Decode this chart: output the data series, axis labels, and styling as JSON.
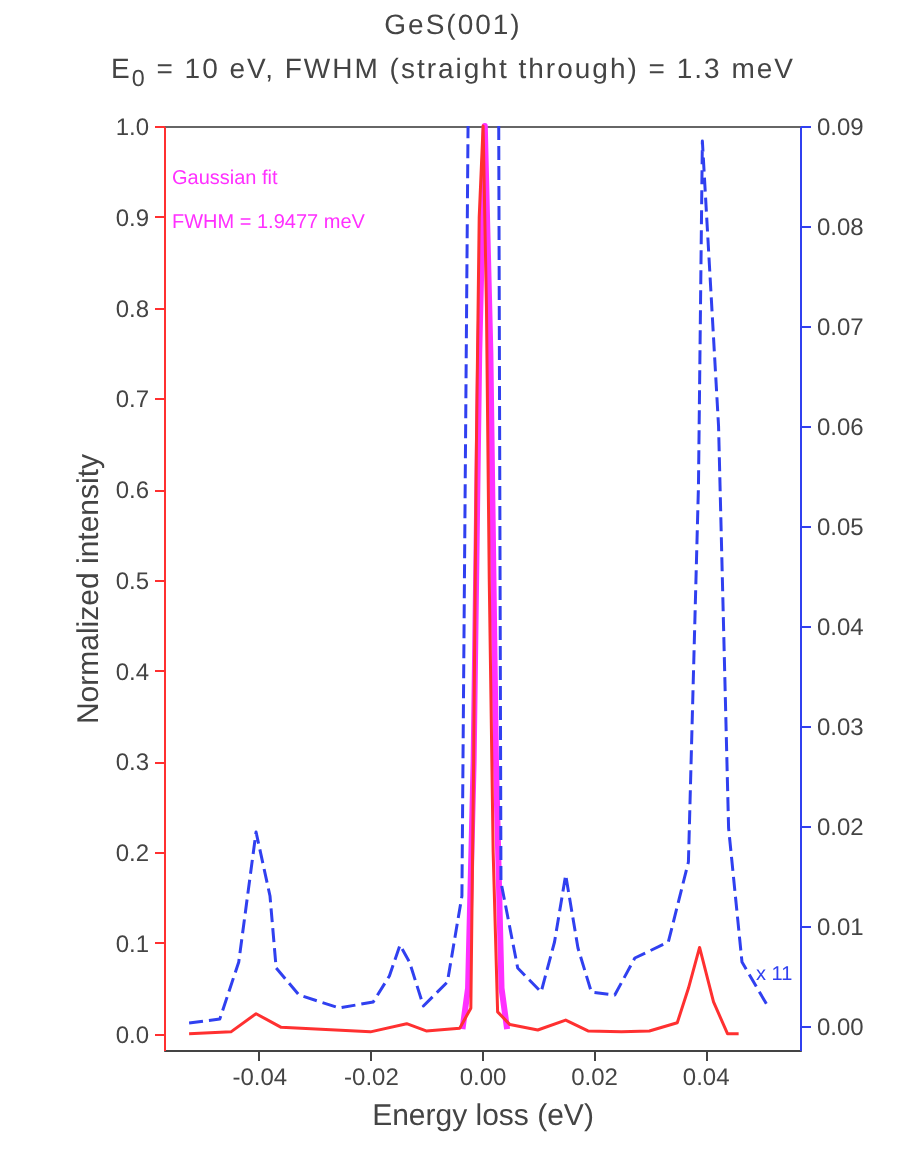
{
  "chart_data": {
    "type": "line",
    "title": "GeS(001)",
    "subtitle": "E$_{0}$ = 10 eV, FWHM (straight through) = 1.3 meV",
    "xlabel": "Energy loss (eV)",
    "ylabel": "Normalized intensity",
    "annotations": [
      "Gaussian fit",
      "FWHM = 1.9477 meV",
      "x 11"
    ],
    "series": [
      {
        "color": "#ff3030",
        "line_style": "solid",
        "x": [
          -0.0525,
          -0.045,
          -0.0405,
          -0.036,
          -0.02,
          -0.0135,
          -0.01,
          -0.004,
          -0.002,
          -0.0015,
          -0.001,
          -0.0005,
          0.0002,
          0.0008,
          0.0013,
          0.002,
          0.0028,
          0.005,
          0.01,
          0.015,
          0.019,
          0.025,
          0.03,
          0.035,
          0.037,
          0.039,
          0.0415,
          0.044,
          0.046
        ],
        "values": [
          0.0,
          0.002,
          0.022,
          0.007,
          0.002,
          0.011,
          0.003,
          0.006,
          0.028,
          0.3,
          0.65,
          0.9,
          1.0,
          0.8,
          0.5,
          0.2,
          0.024,
          0.01,
          0.004,
          0.015,
          0.003,
          0.002,
          0.003,
          0.012,
          0.05,
          0.095,
          0.035,
          0.0,
          0.0
        ]
      },
      {
        "color": "#ff30ff",
        "line_style": "solid",
        "x": [
          -0.0035,
          -0.0025,
          -0.0015,
          -0.0005,
          0.0005,
          0.0015,
          0.0025,
          0.0035,
          0.0045
        ],
        "values": [
          0.005,
          0.05,
          0.3,
          0.75,
          1.0,
          0.75,
          0.3,
          0.05,
          0.005
        ]
      },
      {
        "color": "#3040f0",
        "line_style": "dashed",
        "axis": "y2",
        "x": [
          -0.0525,
          -0.047,
          -0.0436,
          -0.0405,
          -0.038,
          -0.0369,
          -0.0328,
          -0.0256,
          -0.0195,
          -0.0166,
          -0.0147,
          -0.013,
          -0.0105,
          -0.0062,
          -0.0036,
          -0.0025,
          0.0,
          0.003,
          0.0034,
          0.0064,
          0.0106,
          0.013,
          0.015,
          0.0172,
          0.0196,
          0.0238,
          0.0274,
          0.0334,
          0.037,
          0.0388,
          0.0395,
          0.0424,
          0.0442,
          0.0466,
          0.0514
        ],
        "values": [
          0.0003,
          0.0007,
          0.0064,
          0.0194,
          0.013,
          0.0058,
          0.0031,
          0.0018,
          0.0024,
          0.005,
          0.0081,
          0.0064,
          0.002,
          0.0044,
          0.013,
          0.09,
          null,
          0.09,
          0.0144,
          0.0058,
          0.0034,
          0.0084,
          0.0151,
          0.0078,
          0.0034,
          0.0031,
          0.0068,
          0.0084,
          0.0164,
          0.054,
          0.0885,
          0.06,
          0.0198,
          0.0064,
          0.0018
        ]
      }
    ],
    "xlim": [
      -0.057,
      0.057
    ],
    "xticks": [
      -0.04,
      -0.02,
      {
        "value": 0,
        "label": "0.00"
      },
      0.02,
      0.04
    ],
    "ylim": [
      -0.018,
      1.0
    ],
    "yticks": [
      {
        "value": 0,
        "label": "0.0"
      },
      0.1,
      0.2,
      0.3,
      0.4,
      0.5,
      0.6,
      0.7,
      0.8,
      0.9,
      {
        "value": 1,
        "label": "1.0"
      }
    ],
    "y2lim": [
      -0.0024,
      0.09
    ],
    "y2ticks": [
      {
        "value": 0,
        "label": "0.00"
      },
      0.01,
      0.02,
      0.03,
      0.04,
      0.05,
      0.06,
      0.07,
      0.08,
      0.09
    ],
    "relative": false
  }
}
